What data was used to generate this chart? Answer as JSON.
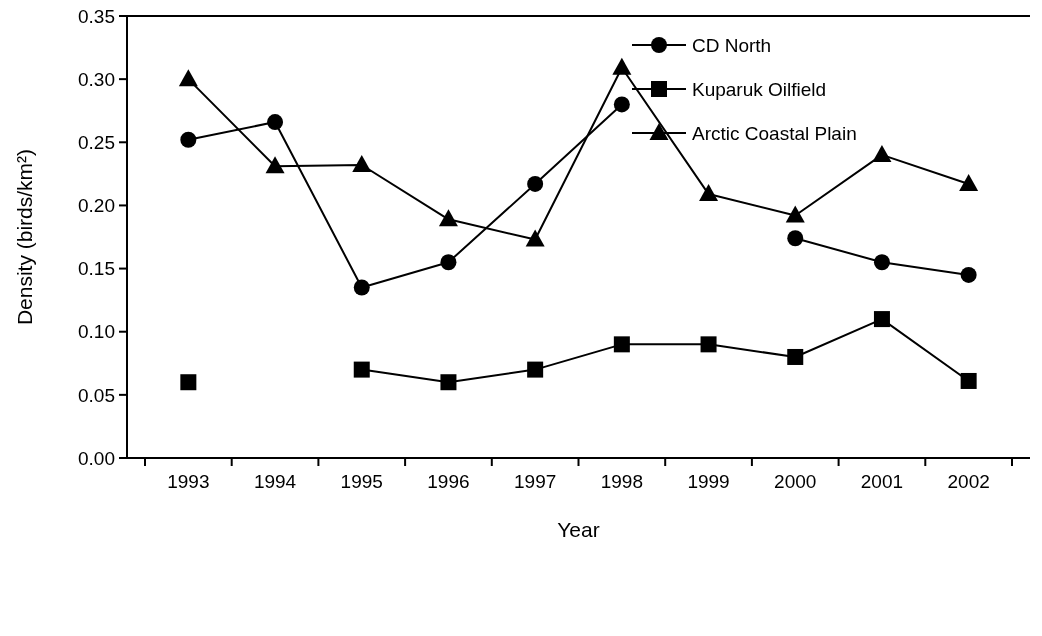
{
  "chart_data": {
    "type": "line",
    "xlabel": "Year",
    "ylabel": "Density (birds/km²)",
    "categories": [
      "1993",
      "1994",
      "1995",
      "1996",
      "1997",
      "1998",
      "1999",
      "2000",
      "2001",
      "2002"
    ],
    "series": [
      {
        "name": "CD North",
        "color": "#000000",
        "marker": "circle",
        "values": [
          0.252,
          0.266,
          0.135,
          0.155,
          0.217,
          0.28,
          null,
          0.174,
          0.155,
          0.145
        ]
      },
      {
        "name": "Kuparuk Oilfield",
        "color": "#000000",
        "marker": "square",
        "values": [
          0.06,
          null,
          0.07,
          0.06,
          0.07,
          0.09,
          0.09,
          0.08,
          0.11,
          0.061
        ]
      },
      {
        "name": "Arctic Coastal Plain",
        "color": "#000000",
        "marker": "triangle",
        "values": [
          0.3,
          0.231,
          0.232,
          0.189,
          0.173,
          0.309,
          0.209,
          0.192,
          0.24,
          0.217
        ]
      }
    ],
    "ylim": [
      0,
      0.35
    ],
    "yticks": [
      {
        "value": 0,
        "label": "0.00"
      },
      {
        "value": 0.05,
        "label": "0.05"
      },
      {
        "value": 0.1,
        "label": "0.10"
      },
      {
        "value": 0.15,
        "label": "0.15"
      },
      {
        "value": 0.2,
        "label": "0.20"
      },
      {
        "value": 0.25,
        "label": "0.25"
      },
      {
        "value": 0.3,
        "label": "0.30"
      },
      {
        "value": 0.35,
        "label": "0.35"
      }
    ],
    "grid": false,
    "legend": "top right",
    "line_style": "solid"
  }
}
